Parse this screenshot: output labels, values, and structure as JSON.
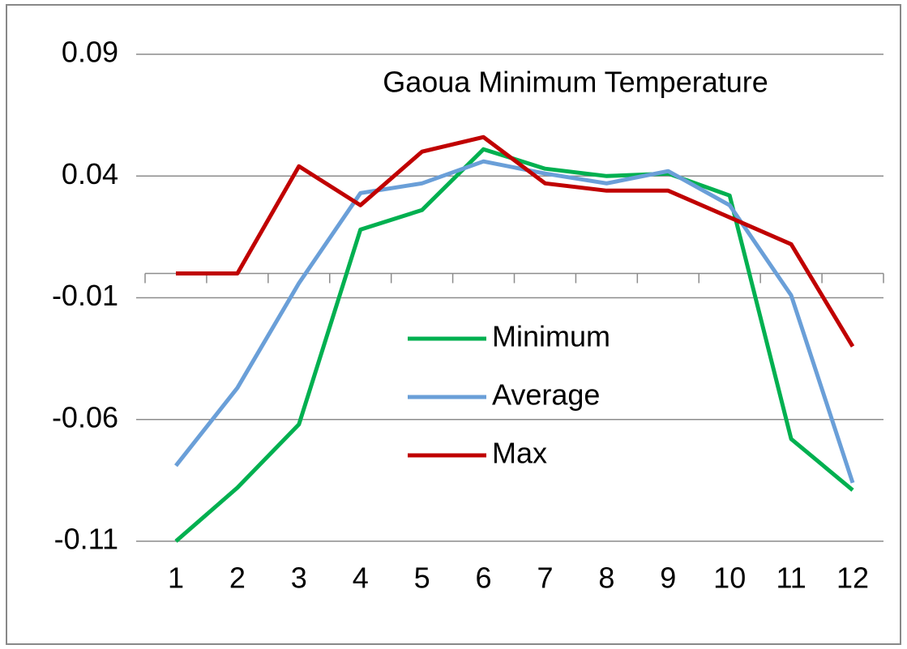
{
  "chart_data": {
    "type": "line",
    "title": "Gaoua Minimum Temperature",
    "categories": [
      "1",
      "2",
      "3",
      "4",
      "5",
      "6",
      "7",
      "8",
      "9",
      "10",
      "11",
      "12"
    ],
    "series": [
      {
        "name": "Minimum",
        "color": "#00b050",
        "values": [
          -0.11,
          -0.088,
          -0.062,
          0.018,
          0.026,
          0.051,
          0.043,
          0.04,
          0.041,
          0.032,
          -0.068,
          -0.089
        ]
      },
      {
        "name": "Average",
        "color": "#6a9fd8",
        "values": [
          -0.079,
          -0.047,
          -0.004,
          0.033,
          0.037,
          0.046,
          0.041,
          0.037,
          0.042,
          0.028,
          -0.009,
          -0.086
        ]
      },
      {
        "name": "Max",
        "color": "#c00000",
        "values": [
          0,
          0,
          0.044,
          0.028,
          0.05,
          0.056,
          0.037,
          0.034,
          0.034,
          0.023,
          0.012,
          -0.03
        ]
      }
    ],
    "ylim": [
      -0.11,
      0.09
    ],
    "yticks": [
      -0.11,
      -0.06,
      -0.01,
      0.04,
      0.09
    ],
    "grid": true
  }
}
